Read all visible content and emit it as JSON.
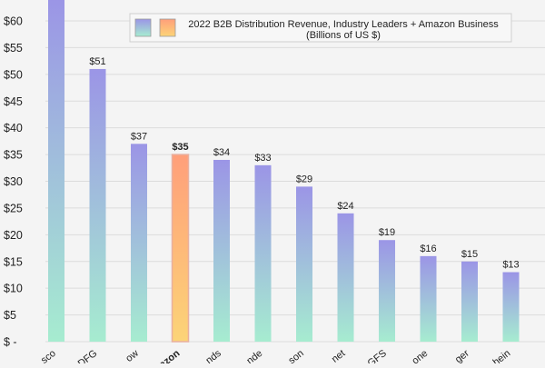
{
  "chart_data": {
    "type": "bar",
    "title": "2022 B2B Distribution Revenue, Industry Leaders + Amazon Business",
    "subtitle": "(Billions of US $)",
    "categories": [
      "sco",
      "DFG",
      "ow",
      "azon",
      "nds",
      "nde",
      "son",
      "net",
      "GFS",
      "one",
      "ger",
      "hein"
    ],
    "values": [
      64,
      51,
      37,
      35,
      34,
      33,
      29,
      24,
      19,
      16,
      15,
      13
    ],
    "value_labels": [
      "",
      "$51",
      "$37",
      "$35",
      "$34",
      "$33",
      "$29",
      "$24",
      "$19",
      "$16",
      "$15",
      "$13"
    ],
    "highlight_index": 3,
    "ylim": [
      0,
      65
    ],
    "y_ticks": [
      0,
      5,
      10,
      15,
      20,
      25,
      30,
      35,
      40,
      45,
      50,
      55,
      60
    ],
    "y_tick_labels": [
      "$ -",
      "$5",
      "$10",
      "$15",
      "$20",
      "$25",
      "$30",
      "$35",
      "$40",
      "$45",
      "$50",
      "$55",
      "$60"
    ],
    "grid": true,
    "legend_placement": "top-right",
    "legend_entries": [
      "",
      ""
    ],
    "colors": {
      "background": "#f4f4f4",
      "grid": "#dcdcdc",
      "bar_top": "#9b95e6",
      "bar_bottom": "#a6ecd0",
      "highlight_top": "#ff9f7a",
      "highlight_bottom": "#fcd478",
      "highlight_border": "#e8b0a0",
      "text": "#222222"
    }
  }
}
